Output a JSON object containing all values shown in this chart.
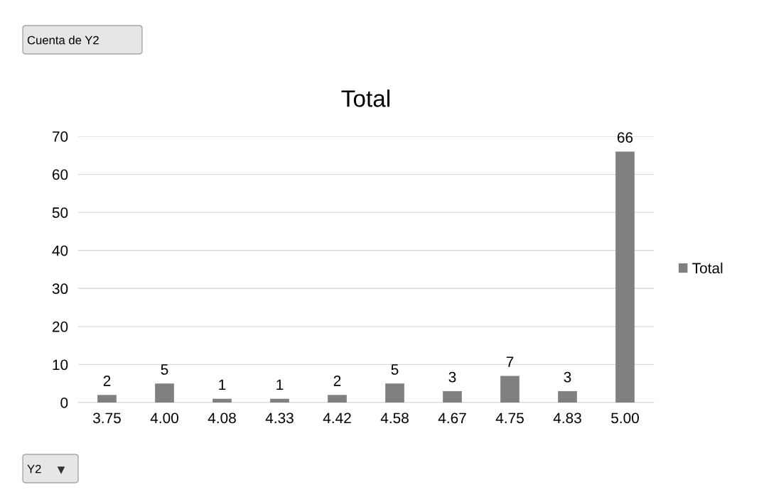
{
  "chart_data": {
    "type": "bar",
    "title": "Total",
    "categories": [
      "3.75",
      "4.00",
      "4.08",
      "4.33",
      "4.42",
      "4.58",
      "4.67",
      "4.75",
      "4.83",
      "5.00"
    ],
    "series": [
      {
        "name": "Total",
        "color": "#808080",
        "values": [
          2,
          5,
          1,
          1,
          2,
          5,
          3,
          7,
          3,
          66
        ]
      }
    ],
    "ylim": [
      0,
      70
    ],
    "yticks": [
      0,
      10,
      20,
      30,
      40,
      50,
      60,
      70
    ],
    "grid": "y",
    "legend": "right",
    "data_labels": true,
    "annotations": [
      "Cuenta de Y2",
      "Y2"
    ]
  }
}
